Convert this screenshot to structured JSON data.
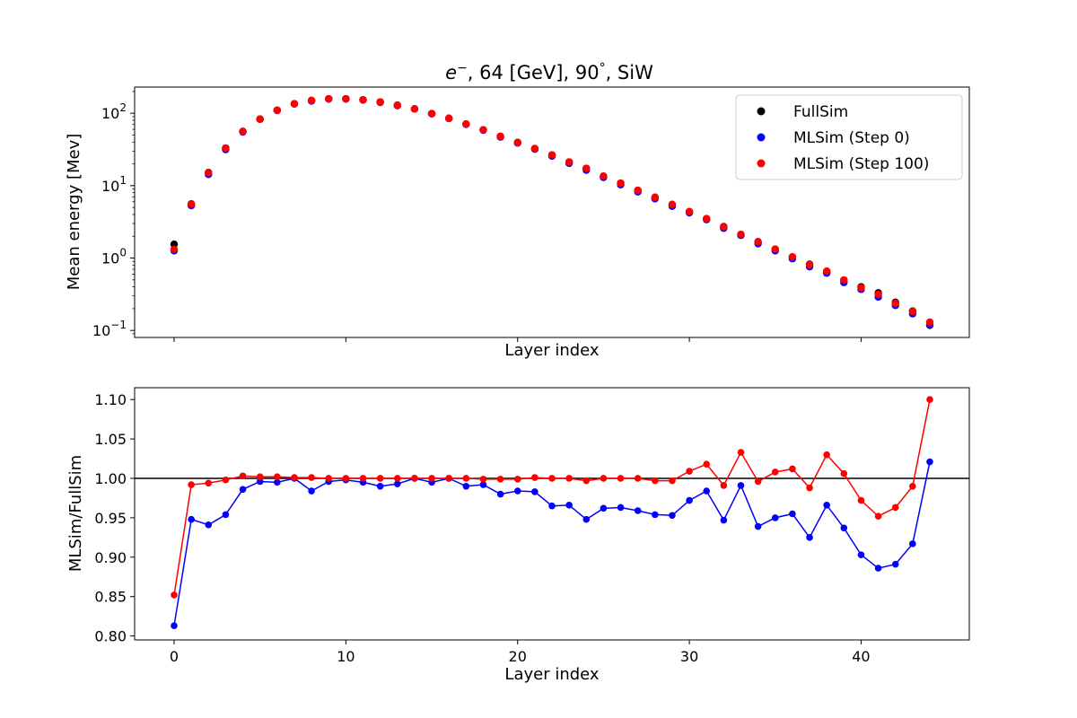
{
  "chart_data": [
    {
      "type": "scatter",
      "title": "e⁻, 64 [GeV], 90°, SiW",
      "title_parts": {
        "particle": "e",
        "particle_sup": "−",
        "rest": ", 64 [GeV], 90",
        "degree": "°",
        "tail": ", SiW"
      },
      "xlabel": "Layer index",
      "ylabel": "Mean energy [Mev]",
      "yscale": "log",
      "xlim": [
        -2.3,
        46.3
      ],
      "ylim": [
        0.08,
        230
      ],
      "y_ticks": [
        {
          "value": 100,
          "base": "10",
          "exp": "2"
        },
        {
          "value": 10,
          "base": "10",
          "exp": "1"
        },
        {
          "value": 1,
          "base": "10",
          "exp": "0"
        },
        {
          "value": 0.1,
          "base": "10",
          "exp": "−1"
        }
      ],
      "x_tick_values": [
        0,
        10,
        20,
        30,
        40
      ],
      "x_tick_labels_shown": false,
      "grid": false,
      "legend_position": "top-right",
      "x": [
        0,
        1,
        2,
        3,
        4,
        5,
        6,
        7,
        8,
        9,
        10,
        11,
        12,
        13,
        14,
        15,
        16,
        17,
        18,
        19,
        20,
        21,
        22,
        23,
        24,
        25,
        26,
        27,
        28,
        29,
        30,
        31,
        32,
        33,
        34,
        35,
        36,
        37,
        38,
        39,
        40,
        41,
        42,
        43,
        44
      ],
      "series": [
        {
          "name": "FullSim",
          "color": "#000000",
          "values": [
            1.55,
            5.6,
            15.2,
            33,
            56,
            83,
            110,
            135,
            150,
            158,
            158,
            153,
            143,
            129,
            115,
            99,
            85,
            71,
            59,
            48,
            39.5,
            32.5,
            26.5,
            21.2,
            17.3,
            13.5,
            10.8,
            8.6,
            6.9,
            5.5,
            4.35,
            3.45,
            2.72,
            2.08,
            1.68,
            1.32,
            1.03,
            0.82,
            0.64,
            0.495,
            0.4,
            0.33,
            0.245,
            0.185,
            0.118
          ]
        },
        {
          "name": "MLSim (Step 0)",
          "color": "#0000ff",
          "values": [
            1.26,
            5.3,
            14.3,
            31.5,
            55.2,
            82.8,
            109.4,
            134.8,
            147.6,
            157.3,
            157.6,
            152.2,
            141.5,
            127.4,
            115,
            98.3,
            85,
            70.3,
            58.4,
            46.9,
            38.9,
            31.9,
            25.6,
            20.4,
            16.4,
            13,
            10.3,
            8.2,
            6.6,
            5.2,
            4.23,
            3.4,
            2.58,
            2.06,
            1.58,
            1.26,
            0.98,
            0.76,
            0.62,
            0.46,
            0.37,
            0.29,
            0.222,
            0.17,
            0.12
          ]
        },
        {
          "name": "MLSim (Step 100)",
          "color": "#ff0000",
          "values": [
            1.32,
            5.55,
            15.1,
            33,
            56.2,
            82.9,
            110.2,
            135,
            150,
            158,
            158,
            153,
            143,
            129,
            115,
            99,
            85,
            71,
            59,
            48,
            39.5,
            32.5,
            26.5,
            21.2,
            17.3,
            13.5,
            10.8,
            8.6,
            6.9,
            5.5,
            4.38,
            3.5,
            2.7,
            2.13,
            1.68,
            1.33,
            1.04,
            0.81,
            0.66,
            0.498,
            0.39,
            0.315,
            0.236,
            0.183,
            0.13
          ]
        }
      ]
    },
    {
      "type": "line",
      "title": "",
      "xlabel": "Layer index",
      "ylabel": "MLSim/FullSim",
      "xlim": [
        -2.3,
        46.3
      ],
      "ylim": [
        0.795,
        1.115
      ],
      "x_ticks": [
        "0",
        "10",
        "20",
        "30",
        "40"
      ],
      "y_ticks": [
        "0.80",
        "0.85",
        "0.90",
        "0.95",
        "1.00",
        "1.05",
        "1.10"
      ],
      "reference_line": 1.0,
      "grid": false,
      "x": [
        0,
        1,
        2,
        3,
        4,
        5,
        6,
        7,
        8,
        9,
        10,
        11,
        12,
        13,
        14,
        15,
        16,
        17,
        18,
        19,
        20,
        21,
        22,
        23,
        24,
        25,
        26,
        27,
        28,
        29,
        30,
        31,
        32,
        33,
        34,
        35,
        36,
        37,
        38,
        39,
        40,
        41,
        42,
        43,
        44
      ],
      "series": [
        {
          "name": "MLSim (Step 0)",
          "color": "#0000ff",
          "values": [
            0.813,
            0.948,
            0.941,
            0.954,
            0.986,
            0.996,
            0.995,
            1.0,
            0.984,
            0.996,
            0.998,
            0.995,
            0.99,
            0.993,
            1.0,
            0.995,
            1.0,
            0.99,
            0.992,
            0.98,
            0.984,
            0.983,
            0.965,
            0.966,
            0.948,
            0.962,
            0.963,
            0.959,
            0.954,
            0.953,
            0.972,
            0.984,
            0.947,
            0.991,
            0.939,
            0.95,
            0.955,
            0.925,
            0.966,
            0.937,
            0.903,
            0.886,
            0.891,
            0.917,
            1.021
          ]
        },
        {
          "name": "MLSim (Step 100)",
          "color": "#ff0000",
          "values": [
            0.852,
            0.992,
            0.994,
            0.998,
            1.003,
            1.002,
            1.002,
            1.001,
            1.001,
            1.0,
            1.0,
            1.0,
            1.0,
            1.0,
            1.0,
            1.0,
            1.0,
            1.0,
            0.999,
            0.999,
            0.999,
            1.001,
            1.0,
            1.0,
            0.997,
            1.0,
            1.0,
            1.0,
            0.997,
            0.997,
            1.009,
            1.018,
            0.991,
            1.033,
            0.996,
            1.008,
            1.012,
            0.988,
            1.03,
            1.006,
            0.972,
            0.952,
            0.963,
            0.99,
            1.1
          ]
        }
      ]
    }
  ]
}
